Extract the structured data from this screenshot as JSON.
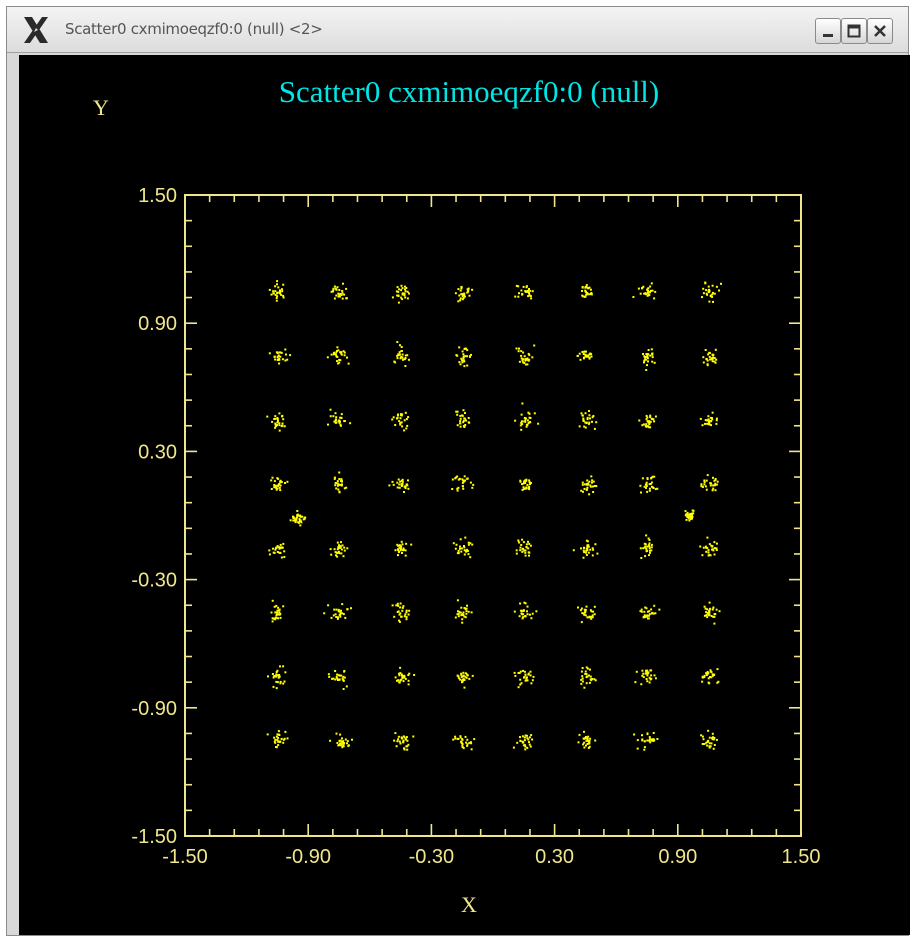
{
  "window": {
    "title": "Scatter0 cxmimoeqzf0:0 (null) <2>",
    "buttons": [
      "minimize",
      "maximize",
      "close"
    ]
  },
  "colors": {
    "background": "#000000",
    "title": "#00e5e5",
    "axes": "#f0e68c",
    "points": "#ffff00"
  },
  "chart_data": {
    "type": "scatter",
    "title": "Scatter0 cxmimoeqzf0:0 (null)",
    "xlabel": "X",
    "ylabel": "Y",
    "xlim": [
      -1.5,
      1.5
    ],
    "ylim": [
      -1.5,
      1.5
    ],
    "xticks": [
      "-1.50",
      "-0.90",
      "-0.30",
      "0.30",
      "0.90",
      "1.50"
    ],
    "yticks": [
      "1.50",
      "0.90",
      "0.30",
      "-0.30",
      "-0.90",
      "-1.50"
    ],
    "grid": false,
    "legend": "none",
    "series": [
      {
        "clusters": {
          "x": [
            -1.05,
            -0.75,
            -0.45,
            -0.15,
            0.15,
            0.45,
            0.75,
            1.05
          ],
          "y": [
            1.05,
            0.75,
            0.45,
            0.15,
            -0.15,
            -0.45,
            -0.75,
            -1.05
          ]
        },
        "extra_clusters": [
          {
            "x": -0.95,
            "y": -0.01
          },
          {
            "x": 0.95,
            "y": 0.0
          }
        ]
      }
    ]
  }
}
